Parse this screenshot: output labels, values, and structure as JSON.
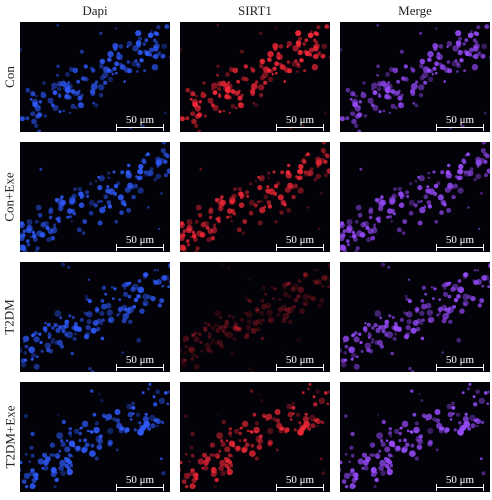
{
  "columns": [
    "Dapi",
    "SIRT1",
    "Merge"
  ],
  "rows": [
    "Con",
    "Con+Exe",
    "T2DM",
    "T2DM+Exe"
  ],
  "scale_bar": "50 μm",
  "colors": {
    "dapi": "#2f5bff",
    "sirt1": "#ff2a3a",
    "merge": "#9a4cff",
    "background": "#020208"
  },
  "sirt1_intensity_by_row": [
    1.0,
    0.9,
    0.35,
    0.85
  ]
}
